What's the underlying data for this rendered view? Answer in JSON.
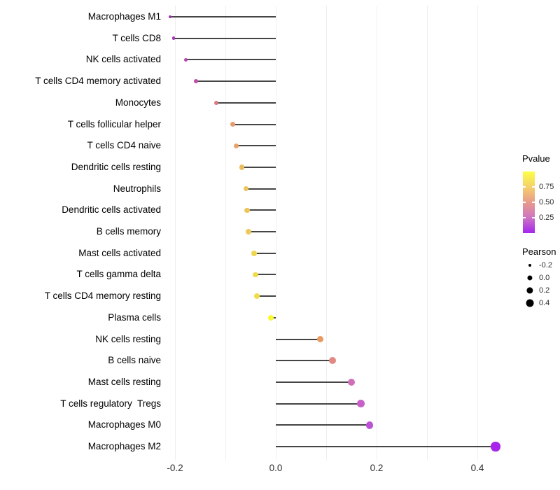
{
  "chart_data": {
    "type": "scatter",
    "variant": "lollipop",
    "orientation": "horizontal",
    "title": "",
    "xlabel": "",
    "ylabel": "",
    "xlim": [
      -0.235,
      0.55
    ],
    "grid": "vertical-only",
    "gridline_values": [
      -0.2,
      -0.1,
      0.0,
      0.1,
      0.2,
      0.3,
      0.4
    ],
    "x_ticks": [
      {
        "label": "-0.2",
        "value": -0.2
      },
      {
        "label": "0.0",
        "value": 0.0
      },
      {
        "label": "0.2",
        "value": 0.2
      },
      {
        "label": "0.4",
        "value": 0.4
      }
    ],
    "items": [
      {
        "label": "Macrophages M1",
        "pearson": -0.21,
        "color": "#9C30AD"
      },
      {
        "label": "T cells CD8",
        "pearson": -0.203,
        "color": "#A338B1"
      },
      {
        "label": "NK cells activated",
        "pearson": -0.179,
        "color": "#B845B3"
      },
      {
        "label": "T cells CD4 memory activated",
        "pearson": -0.158,
        "color": "#C24FA7"
      },
      {
        "label": "Monocytes",
        "pearson": -0.118,
        "color": "#D97A82"
      },
      {
        "label": "T cells follicular helper",
        "pearson": -0.086,
        "color": "#E69B6C"
      },
      {
        "label": "T cells CD4 naive",
        "pearson": -0.079,
        "color": "#E8A468"
      },
      {
        "label": "Dendritic cells resting",
        "pearson": -0.067,
        "color": "#EBBC5D"
      },
      {
        "label": "Neutrophils",
        "pearson": -0.059,
        "color": "#ECC55A"
      },
      {
        "label": "Dendritic cells activated",
        "pearson": -0.057,
        "color": "#ECC65A"
      },
      {
        "label": "B cells memory",
        "pearson": -0.054,
        "color": "#EDC95B"
      },
      {
        "label": "Mast cells activated",
        "pearson": -0.043,
        "color": "#F0D64F"
      },
      {
        "label": "T cells gamma delta",
        "pearson": -0.04,
        "color": "#F1D94D"
      },
      {
        "label": "T cells CD4 memory resting",
        "pearson": -0.038,
        "color": "#F1DC4C"
      },
      {
        "label": "Plasma cells",
        "pearson": -0.01,
        "color": "#F9F832"
      },
      {
        "label": "NK cells resting",
        "pearson": 0.088,
        "color": "#E89A62"
      },
      {
        "label": "B cells naive",
        "pearson": 0.113,
        "color": "#E18A85"
      },
      {
        "label": "Mast cells resting",
        "pearson": 0.15,
        "color": "#D06FB8"
      },
      {
        "label": "T cells regulatory  Tregs",
        "pearson": 0.169,
        "color": "#C75FC9"
      },
      {
        "label": "Macrophages M0",
        "pearson": 0.186,
        "color": "#BC53D6"
      },
      {
        "label": "Macrophages M2",
        "pearson": 0.436,
        "color": "#A724EA"
      }
    ],
    "stem_color": "#454545",
    "gridline_color": "#efefef",
    "legend": {
      "pvalue": {
        "title": "Pvalue",
        "gradient": [
          {
            "pos": 0.0,
            "color": "#A426EE"
          },
          {
            "pos": 0.25,
            "color": "#CD74C2"
          },
          {
            "pos": 0.5,
            "color": "#E89B8B"
          },
          {
            "pos": 0.75,
            "color": "#F5D06C"
          },
          {
            "pos": 1.0,
            "color": "#FCFF45"
          }
        ],
        "ticks": [
          {
            "label": "0.75",
            "value": 0.75
          },
          {
            "label": "0.50",
            "value": 0.5
          },
          {
            "label": "0.25",
            "value": 0.25
          }
        ]
      },
      "pearson": {
        "title": "Pearson",
        "entries": [
          {
            "label": "-0.2",
            "value": -0.2
          },
          {
            "label": "0.0",
            "value": 0.0
          },
          {
            "label": "0.2",
            "value": 0.2
          },
          {
            "label": "0.4",
            "value": 0.4
          }
        ]
      }
    }
  }
}
